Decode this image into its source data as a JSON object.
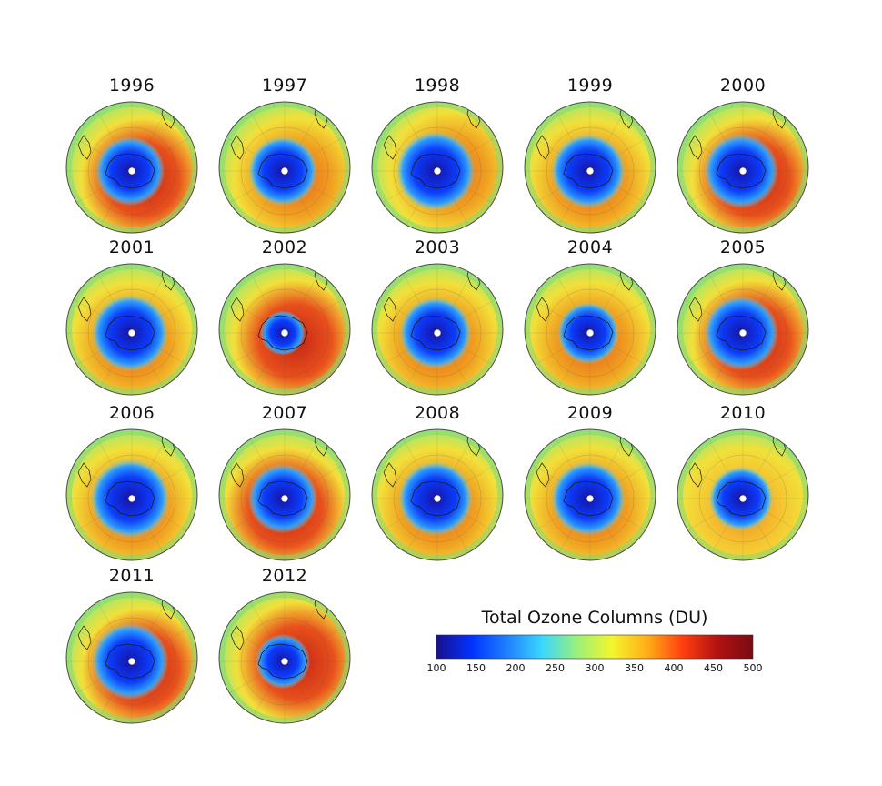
{
  "panels": [
    {
      "year": "1996",
      "hole": 0.28,
      "ring": "strong",
      "ring_dir": "bottom-right"
    },
    {
      "year": "1997",
      "hole": 0.28,
      "ring": "medium",
      "ring_dir": "bottom-right"
    },
    {
      "year": "1998",
      "hole": 0.32,
      "ring": "medium",
      "ring_dir": "right"
    },
    {
      "year": "1999",
      "hole": 0.3,
      "ring": "medium",
      "ring_dir": "bottom"
    },
    {
      "year": "2000",
      "hole": 0.3,
      "ring": "strong",
      "ring_dir": "bottom-right"
    },
    {
      "year": "2001",
      "hole": 0.31,
      "ring": "medium",
      "ring_dir": "bottom"
    },
    {
      "year": "2002",
      "hole": 0.18,
      "ring": "strong",
      "ring_dir": "bottom-right"
    },
    {
      "year": "2003",
      "hole": 0.29,
      "ring": "medium",
      "ring_dir": "bottom"
    },
    {
      "year": "2004",
      "hole": 0.25,
      "ring": "medium",
      "ring_dir": "bottom"
    },
    {
      "year": "2005",
      "hole": 0.3,
      "ring": "strong",
      "ring_dir": "bottom-right"
    },
    {
      "year": "2006",
      "hole": 0.32,
      "ring": "medium",
      "ring_dir": "bottom"
    },
    {
      "year": "2007",
      "hole": 0.28,
      "ring": "strong",
      "ring_dir": "bottom"
    },
    {
      "year": "2008",
      "hole": 0.3,
      "ring": "medium",
      "ring_dir": "bottom"
    },
    {
      "year": "2009",
      "hole": 0.3,
      "ring": "medium",
      "ring_dir": "bottom"
    },
    {
      "year": "2010",
      "hole": 0.26,
      "ring": "light",
      "ring_dir": "bottom"
    },
    {
      "year": "2011",
      "hole": 0.31,
      "ring": "strong",
      "ring_dir": "bottom-right"
    },
    {
      "year": "2012",
      "hole": 0.22,
      "ring": "strong",
      "ring_dir": "right"
    }
  ],
  "colorbar": {
    "title": "Total Ozone Columns (DU)",
    "ticks": [
      "100",
      "150",
      "200",
      "250",
      "300",
      "350",
      "400",
      "450",
      "500"
    ],
    "colors": [
      "#1a0f8c",
      "#0033ff",
      "#1f7fff",
      "#39d7ff",
      "#9bf07a",
      "#f4f52d",
      "#ffae18",
      "#ff3e10",
      "#b01212",
      "#7a0b12"
    ]
  }
}
